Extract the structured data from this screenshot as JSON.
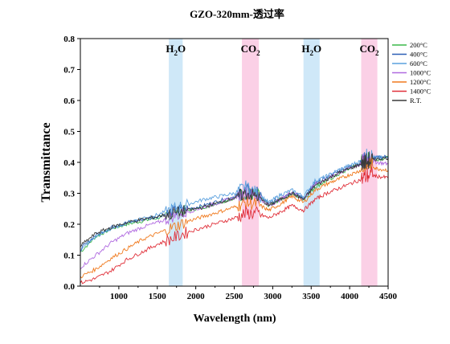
{
  "chart_data": {
    "type": "line",
    "title": "GZO-320mm-透过率",
    "xlabel": "Wavelength (nm)",
    "ylabel": "Transmittance",
    "xlim": [
      500,
      4500
    ],
    "ylim": [
      0.0,
      0.8
    ],
    "x_ticks": [
      1000,
      1500,
      2000,
      2500,
      3000,
      3500,
      4000,
      4500
    ],
    "y_ticks": [
      0.0,
      0.1,
      0.2,
      0.3,
      0.4,
      0.5,
      0.6,
      0.7,
      0.8
    ],
    "x_tick_labels": [
      "1000",
      "1500",
      "2000",
      "2500",
      "3000",
      "3500",
      "4000",
      "4500"
    ],
    "y_tick_labels": [
      "0.0",
      "0.1",
      "0.2",
      "0.3",
      "0.4",
      "0.5",
      "0.6",
      "0.7",
      "0.8"
    ],
    "grid": false,
    "legend_position": "top-right",
    "absorption_bands": [
      {
        "label_main": "H",
        "label_sub": "2",
        "label_tail": "O",
        "x_range": [
          1650,
          1830
        ],
        "color": "#cfe8f8"
      },
      {
        "label_main": "CO",
        "label_sub": "2",
        "label_tail": "",
        "x_range": [
          2600,
          2820
        ],
        "color": "#fbd0e6"
      },
      {
        "label_main": "H",
        "label_sub": "2",
        "label_tail": "O",
        "x_range": [
          3400,
          3610
        ],
        "color": "#cfe8f8"
      },
      {
        "label_main": "CO",
        "label_sub": "2",
        "label_tail": "",
        "x_range": [
          4150,
          4360
        ],
        "color": "#fbd0e6"
      }
    ],
    "x": [
      500,
      700,
      900,
      1100,
      1300,
      1500,
      1700,
      1900,
      2100,
      2300,
      2500,
      2650,
      2800,
      2950,
      3100,
      3250,
      3400,
      3550,
      3700,
      3850,
      4000,
      4150,
      4250,
      4350,
      4500
    ],
    "series": [
      {
        "name": "200°C",
        "color": "#3cb84a",
        "values": [
          0.11,
          0.16,
          0.185,
          0.2,
          0.21,
          0.22,
          0.235,
          0.245,
          0.255,
          0.27,
          0.285,
          0.3,
          0.295,
          0.26,
          0.28,
          0.3,
          0.28,
          0.32,
          0.34,
          0.36,
          0.38,
          0.4,
          0.405,
          0.41,
          0.415
        ]
      },
      {
        "name": "400°C",
        "color": "#2c5fb6",
        "values": [
          0.12,
          0.165,
          0.19,
          0.205,
          0.215,
          0.225,
          0.24,
          0.25,
          0.26,
          0.275,
          0.29,
          0.31,
          0.3,
          0.265,
          0.285,
          0.305,
          0.285,
          0.33,
          0.35,
          0.37,
          0.385,
          0.4,
          0.41,
          0.415,
          0.42
        ]
      },
      {
        "name": "600°C",
        "color": "#5aa0de",
        "values": [
          0.115,
          0.16,
          0.185,
          0.205,
          0.22,
          0.23,
          0.25,
          0.265,
          0.28,
          0.29,
          0.3,
          0.32,
          0.3,
          0.27,
          0.295,
          0.31,
          0.29,
          0.34,
          0.355,
          0.375,
          0.39,
          0.405,
          0.42,
          0.415,
          0.415
        ]
      },
      {
        "name": "1000°C",
        "color": "#b06ae0",
        "values": [
          0.06,
          0.1,
          0.14,
          0.17,
          0.19,
          0.205,
          0.225,
          0.24,
          0.255,
          0.27,
          0.285,
          0.3,
          0.29,
          0.26,
          0.28,
          0.305,
          0.28,
          0.33,
          0.345,
          0.365,
          0.38,
          0.395,
          0.41,
          0.4,
          0.395
        ]
      },
      {
        "name": "1200°C",
        "color": "#f07a1e",
        "values": [
          0.03,
          0.055,
          0.09,
          0.12,
          0.15,
          0.17,
          0.19,
          0.21,
          0.225,
          0.24,
          0.255,
          0.27,
          0.265,
          0.245,
          0.265,
          0.29,
          0.27,
          0.31,
          0.33,
          0.345,
          0.36,
          0.375,
          0.395,
          0.38,
          0.375
        ]
      },
      {
        "name": "1400°C",
        "color": "#e0303a",
        "values": [
          0.01,
          0.025,
          0.05,
          0.085,
          0.11,
          0.135,
          0.155,
          0.175,
          0.19,
          0.205,
          0.22,
          0.235,
          0.235,
          0.22,
          0.24,
          0.26,
          0.245,
          0.28,
          0.3,
          0.315,
          0.33,
          0.345,
          0.36,
          0.355,
          0.35
        ]
      },
      {
        "name": "R.T.",
        "color": "#3a3a3a",
        "values": [
          0.13,
          0.17,
          0.19,
          0.205,
          0.215,
          0.225,
          0.235,
          0.245,
          0.255,
          0.27,
          0.285,
          0.3,
          0.29,
          0.26,
          0.28,
          0.3,
          0.28,
          0.325,
          0.345,
          0.365,
          0.38,
          0.395,
          0.405,
          0.41,
          0.415
        ]
      }
    ]
  }
}
